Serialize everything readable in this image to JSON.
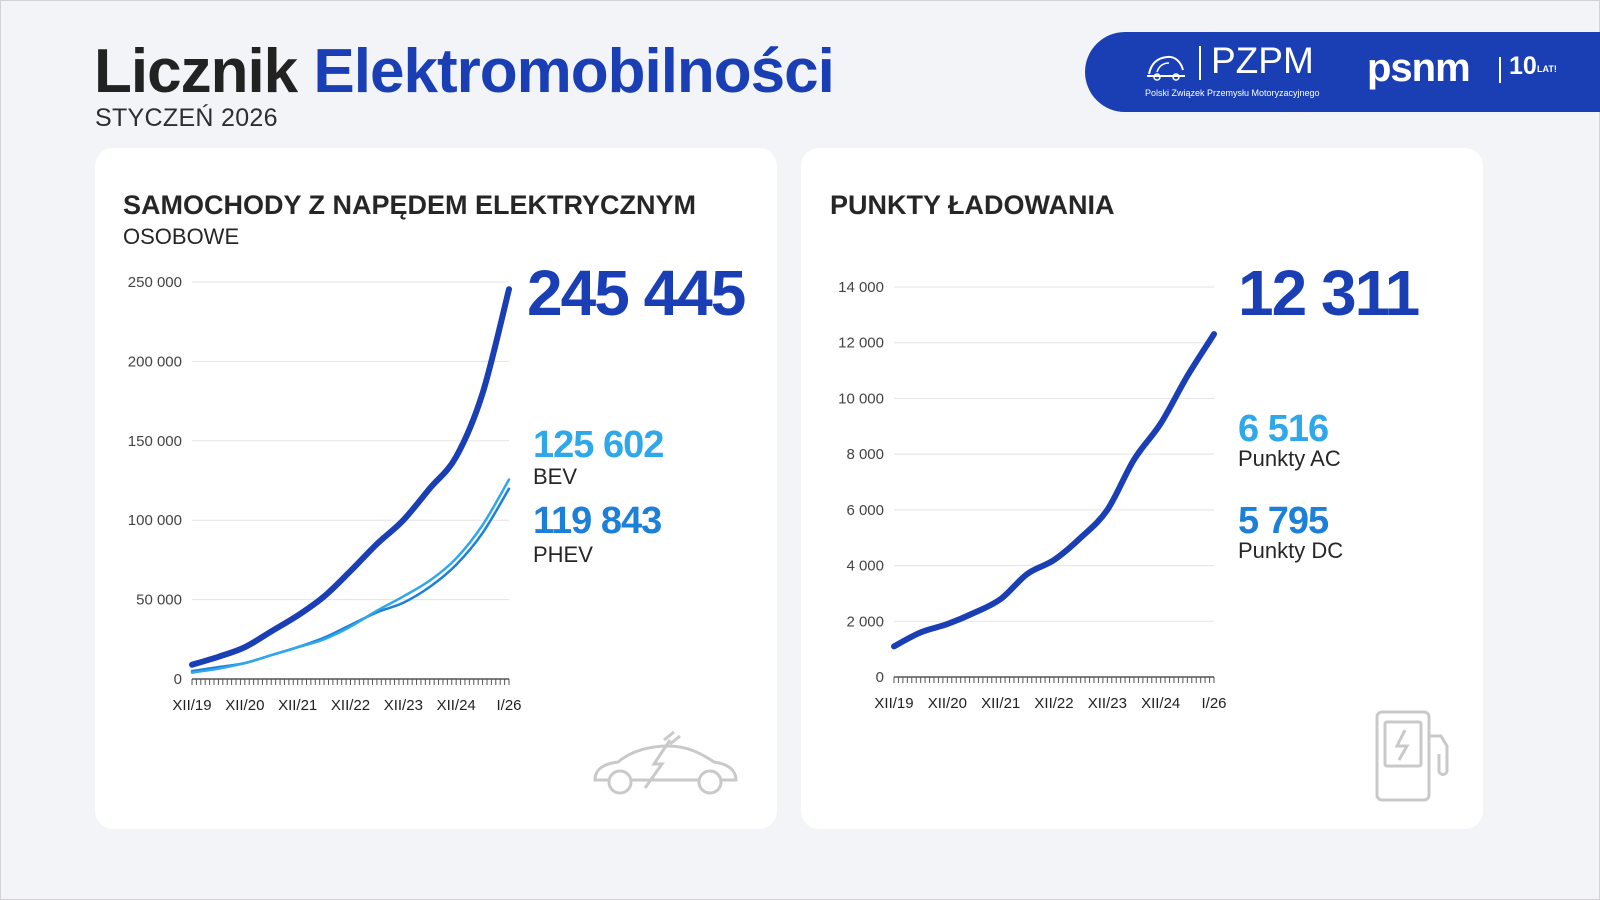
{
  "header": {
    "title_part1": "Licznik",
    "title_part2": "Elektromobilności",
    "subtitle": "STYCZEŃ 2026"
  },
  "logos": {
    "pzpm_name": "PZPM",
    "pzpm_full": "Polski Związek Przemysłu Motoryzacyjnego",
    "psnm_name": "psnm",
    "psnm_years": "10",
    "psnm_lat": "LAT!"
  },
  "colors": {
    "brand_blue": "#1a3fb5",
    "light_blue": "#2ea8e8",
    "mid_blue": "#1c7fd8",
    "grid": "#e3e3e3"
  },
  "left_card": {
    "title": "SAMOCHODY Z NAPĘDEM ELEKTRYCZNYM",
    "subtitle": "OSOBOWE",
    "total_value": "245 445",
    "bev_value": "125 602",
    "bev_label": "BEV",
    "phev_value": "119 843",
    "phev_label": "PHEV",
    "icon": "electric-car-icon"
  },
  "right_card": {
    "title": "PUNKTY ŁADOWANIA",
    "total_value": "12 311",
    "ac_value": "6 516",
    "ac_label": "Punkty AC",
    "dc_value": "5 795",
    "dc_label": "Punkty DC",
    "icon": "charging-station-icon"
  },
  "chart_data": [
    {
      "type": "line",
      "title": "SAMOCHODY Z NAPĘDEM ELEKTRYCZNYM",
      "subtitle": "OSOBOWE",
      "x_tick_labels": [
        "XII/19",
        "XII/20",
        "XII/21",
        "XII/22",
        "XII/23",
        "XII/24",
        "I/26"
      ],
      "y_tick_labels": [
        "0",
        "50 000",
        "100 000",
        "150 000",
        "200 000",
        "250 000"
      ],
      "ylim": [
        0,
        250000
      ],
      "grid": true,
      "x": [
        "XII/19",
        "VI/20",
        "XII/20",
        "VI/21",
        "XII/21",
        "VI/22",
        "XII/22",
        "VI/23",
        "XII/23",
        "VI/24",
        "XII/24",
        "VI/25",
        "I/26"
      ],
      "series": [
        {
          "name": "",
          "values": [
            9000,
            14000,
            20000,
            30000,
            40000,
            52000,
            68000,
            85000,
            100000,
            120000,
            140000,
            180000,
            245445
          ]
        },
        {
          "name": "BEV",
          "values": [
            4000,
            6500,
            10000,
            15000,
            20000,
            25000,
            33000,
            43000,
            52000,
            62000,
            76000,
            97000,
            125602
          ]
        },
        {
          "name": "PHEV",
          "values": [
            5000,
            7500,
            10000,
            15000,
            20000,
            26000,
            34000,
            42000,
            48000,
            58000,
            72000,
            92000,
            119843
          ]
        }
      ]
    },
    {
      "type": "line",
      "title": "PUNKTY ŁADOWANIA",
      "x_tick_labels": [
        "XII/19",
        "XII/20",
        "XII/21",
        "XII/22",
        "XII/23",
        "XII/24",
        "I/26"
      ],
      "y_tick_labels": [
        "0",
        "2 000",
        "4 000",
        "6 000",
        "8 000",
        "10 000",
        "12 000",
        "14 000"
      ],
      "ylim": [
        0,
        14000
      ],
      "grid": true,
      "x": [
        "XII/19",
        "VI/20",
        "XII/20",
        "VI/21",
        "XII/21",
        "VI/22",
        "XII/22",
        "VI/23",
        "XII/23",
        "VI/24",
        "XII/24",
        "VI/25",
        "I/26"
      ],
      "series": [
        {
          "name": "",
          "values": [
            1100,
            1600,
            1900,
            2300,
            2800,
            3700,
            4200,
            5000,
            6000,
            7800,
            9100,
            10800,
            12311
          ]
        }
      ]
    }
  ]
}
